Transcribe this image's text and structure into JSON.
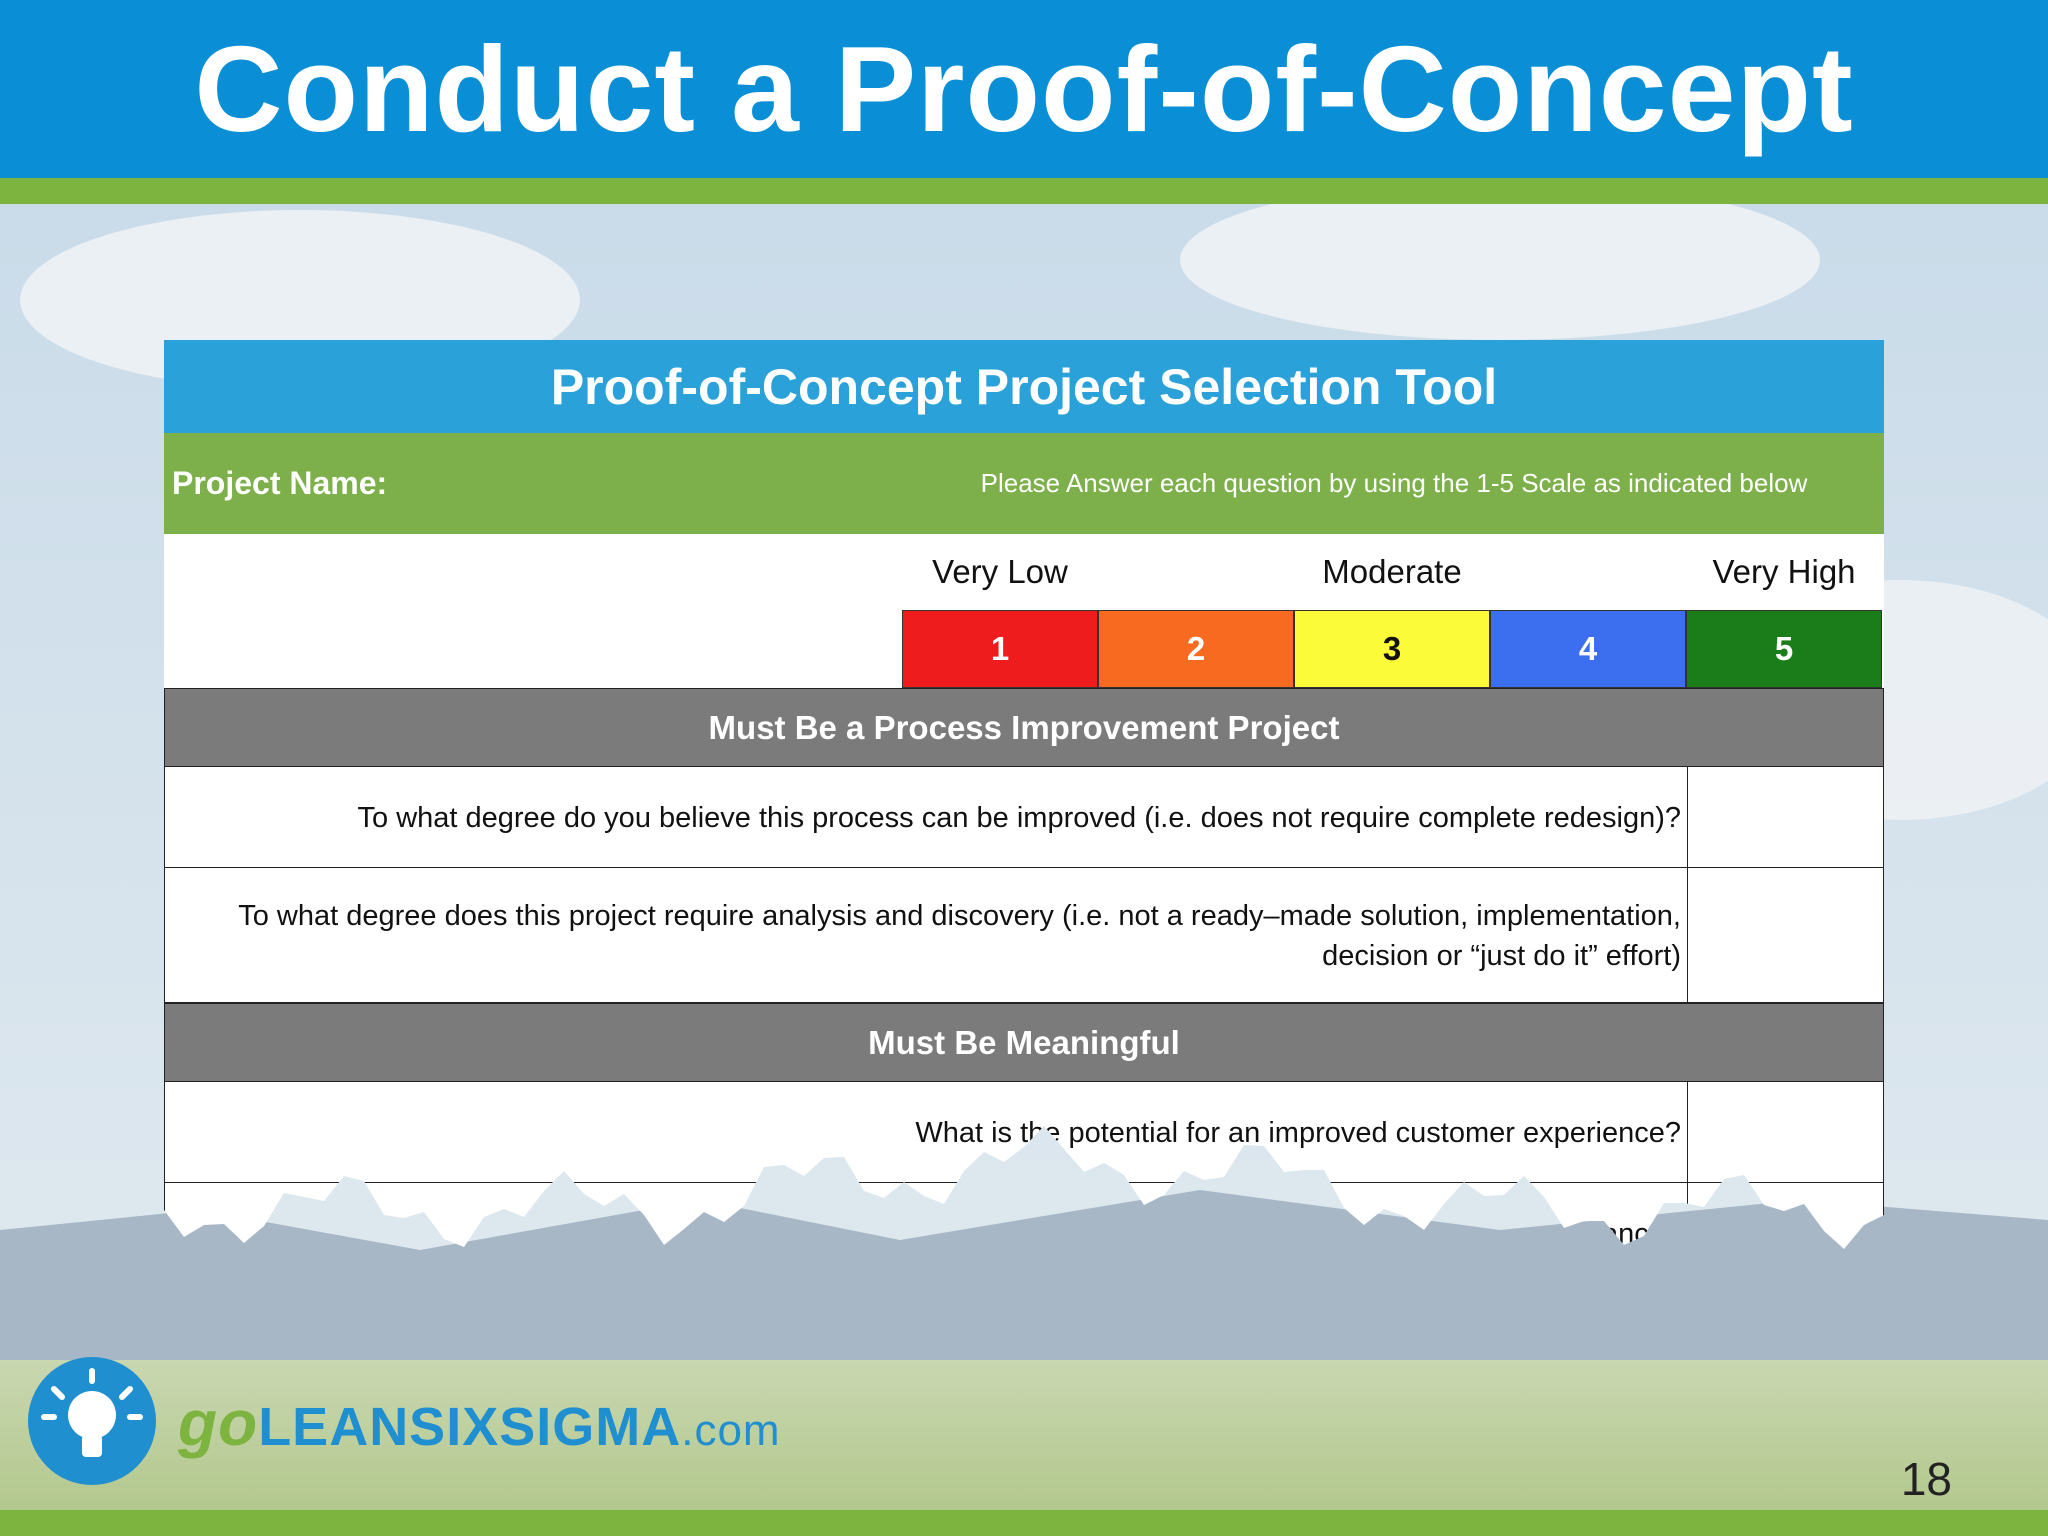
{
  "header": {
    "title": "Conduct a Proof-of-Concept"
  },
  "tool": {
    "title": "Proof-of-Concept Project Selection Tool",
    "project_label": "Project Name:",
    "instructions": "Please Answer each question by using the 1-5 Scale as indicated below",
    "scale_labels": [
      "Very Low",
      "Moderate",
      "Very High"
    ],
    "scale": [
      1,
      2,
      3,
      4,
      5
    ],
    "scale_colors": [
      "#ee1c1c",
      "#f96a21",
      "#fbfb3a",
      "#3b6ff0",
      "#1a7d1a"
    ],
    "sections": [
      {
        "heading": "Must Be a Process Improvement Project",
        "questions": [
          "To what degree do you believe this process can be improved (i.e. does not require complete redesign)?",
          "To what degree does this project require analysis and discovery (i.e. not a ready–made solution, implementation, decision or “just do it” effort)"
        ]
      },
      {
        "heading": "Must Be Meaningful",
        "questions": [
          "What is the potential for an improved customer experience?",
          "cost avoidance?"
        ]
      }
    ]
  },
  "footer": {
    "logo_parts": [
      "go",
      "LEANSIXSIGMA",
      ".com"
    ],
    "page_number": 18
  }
}
